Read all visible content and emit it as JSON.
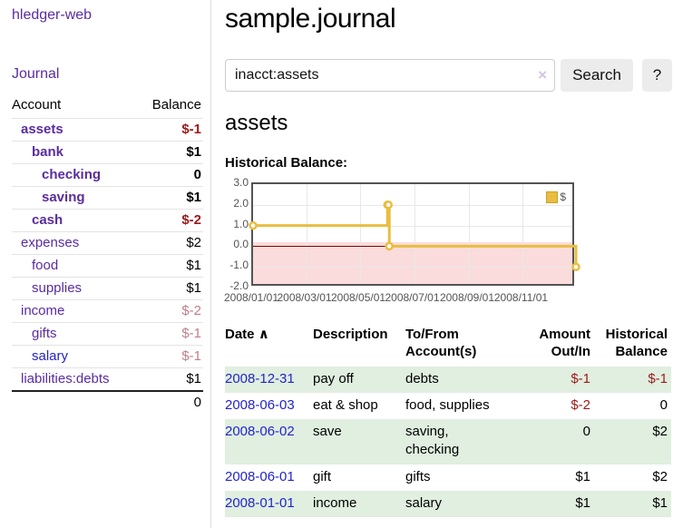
{
  "app": {
    "title": "hledger-web"
  },
  "nav": {
    "journal_label": "Journal"
  },
  "sidebar": {
    "header": {
      "account": "Account",
      "balance": "Balance"
    },
    "accounts": [
      {
        "name": "assets",
        "indent": 1,
        "bold": true,
        "blue": false,
        "balance": "$-1",
        "balance_class": "neg-strong"
      },
      {
        "name": "bank",
        "indent": 2,
        "bold": true,
        "blue": false,
        "balance": "$1",
        "balance_class": ""
      },
      {
        "name": "checking",
        "indent": 3,
        "bold": true,
        "blue": false,
        "balance": "0",
        "balance_class": ""
      },
      {
        "name": "saving",
        "indent": 3,
        "bold": true,
        "blue": false,
        "balance": "$1",
        "balance_class": ""
      },
      {
        "name": "cash",
        "indent": 2,
        "bold": true,
        "blue": false,
        "balance": "$-2",
        "balance_class": "neg-strong"
      },
      {
        "name": "expenses",
        "indent": 1,
        "bold": false,
        "blue": false,
        "balance": "$2",
        "balance_class": ""
      },
      {
        "name": "food",
        "indent": 2,
        "bold": false,
        "blue": false,
        "balance": "$1",
        "balance_class": ""
      },
      {
        "name": "supplies",
        "indent": 2,
        "bold": false,
        "blue": false,
        "balance": "$1",
        "balance_class": ""
      },
      {
        "name": "income",
        "indent": 1,
        "bold": false,
        "blue": false,
        "balance": "$-2",
        "balance_class": "neg-faded"
      },
      {
        "name": "gifts",
        "indent": 2,
        "bold": false,
        "blue": false,
        "balance": "$-1",
        "balance_class": "neg-faded"
      },
      {
        "name": "salary",
        "indent": 2,
        "bold": false,
        "blue": true,
        "balance": "$-1",
        "balance_class": "neg-faded"
      },
      {
        "name": "liabilities:debts",
        "indent": 1,
        "bold": false,
        "blue": false,
        "balance": "$1",
        "balance_class": ""
      }
    ],
    "total": "0"
  },
  "main": {
    "title": "sample.journal",
    "search": {
      "value": "inacct:assets",
      "clear_icon": "×",
      "button_label": "Search",
      "help_label": "?"
    },
    "account_heading": "assets",
    "chart_title": "Historical Balance:"
  },
  "chart_data": {
    "type": "line",
    "step": true,
    "title": "Historical Balance",
    "ylim": [
      -2,
      3
    ],
    "yticks": [
      {
        "label": "3.0",
        "value": 3
      },
      {
        "label": "2.0",
        "value": 2
      },
      {
        "label": "1.0",
        "value": 1
      },
      {
        "label": "0.0",
        "value": 0
      },
      {
        "label": "-1.0",
        "value": -1
      },
      {
        "label": "-2.0",
        "value": -2
      }
    ],
    "x_range_days": 365,
    "xticks": [
      {
        "label": "2008/01/01",
        "day": 0
      },
      {
        "label": "2008/03/01",
        "day": 60
      },
      {
        "label": "2008/05/01",
        "day": 121
      },
      {
        "label": "2008/07/01",
        "day": 182
      },
      {
        "label": "2008/09/01",
        "day": 244
      },
      {
        "label": "2008/11/01",
        "day": 305
      }
    ],
    "series": [
      {
        "name": "$",
        "color": "#e9bd3f",
        "points": [
          {
            "date": "2008-01-01",
            "day": 0,
            "value": 1
          },
          {
            "date": "2008-06-01",
            "day": 152,
            "value": 2
          },
          {
            "date": "2008-06-02",
            "day": 153,
            "value": 2
          },
          {
            "date": "2008-06-03",
            "day": 154,
            "value": 0
          },
          {
            "date": "2008-12-31",
            "day": 365,
            "value": -1
          }
        ]
      }
    ],
    "legend": {
      "position": "top-right",
      "label": "$"
    },
    "negative_region_color": "#fbdcdc",
    "zero_line_color": "#8b0000"
  },
  "register": {
    "headers": {
      "date": "Date",
      "sort_arrow": "∧",
      "description": "Description",
      "tofrom_line1": "To/From",
      "tofrom_line2": "Account(s)",
      "amount_line1": "Amount",
      "amount_line2": "Out/In",
      "balance_line1": "Historical",
      "balance_line2": "Balance"
    },
    "rows": [
      {
        "date": "2008-12-31",
        "description": "pay off",
        "accounts": "debts",
        "amount": "$-1",
        "amount_class": "neg-strong",
        "balance": "$-1",
        "balance_class": "neg-strong"
      },
      {
        "date": "2008-06-03",
        "description": "eat & shop",
        "accounts": "food, supplies",
        "amount": "$-2",
        "amount_class": "neg-strong",
        "balance": "0",
        "balance_class": ""
      },
      {
        "date": "2008-06-02",
        "description": "save",
        "accounts": "saving,\ncheckin g",
        "accounts_display": "saving,\nchecking",
        "amount": "0",
        "amount_class": "",
        "balance": "$2",
        "balance_class": ""
      },
      {
        "date": "2008-06-01",
        "description": "gift",
        "accounts": "gifts",
        "amount": "$1",
        "amount_class": "",
        "balance": "$2",
        "balance_class": ""
      },
      {
        "date": "2008-01-01",
        "description": "income",
        "accounts": "salary",
        "amount": "$1",
        "amount_class": "",
        "balance": "$1",
        "balance_class": ""
      }
    ]
  }
}
